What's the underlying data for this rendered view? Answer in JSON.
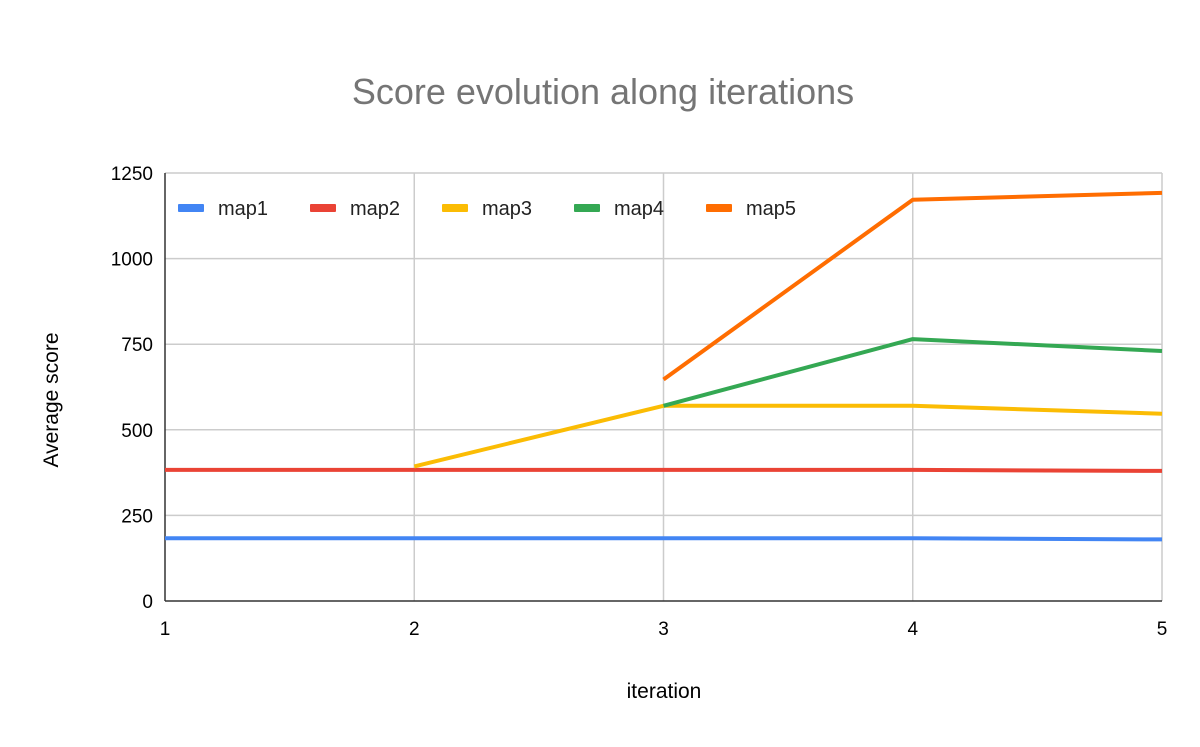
{
  "chart_data": {
    "type": "line",
    "title": "Score evolution along iterations",
    "xlabel": "iteration",
    "ylabel": "Average score",
    "x": [
      1,
      2,
      3,
      4,
      5
    ],
    "xlim": [
      1,
      5
    ],
    "ylim": [
      0,
      1250
    ],
    "yticks": [
      0,
      250,
      500,
      750,
      1000,
      1250
    ],
    "xticks": [
      1,
      2,
      3,
      4,
      5
    ],
    "grid": true,
    "legend_position": "top-left",
    "series": [
      {
        "name": "map1",
        "color": "#4285F4",
        "values": [
          183,
          183,
          183,
          183,
          180
        ]
      },
      {
        "name": "map2",
        "color": "#EA4335",
        "values": [
          383,
          383,
          383,
          383,
          380
        ]
      },
      {
        "name": "map3",
        "color": "#FBBC04",
        "values": [
          null,
          393,
          570,
          570,
          547
        ]
      },
      {
        "name": "map4",
        "color": "#34A853",
        "values": [
          null,
          null,
          570,
          765,
          730
        ]
      },
      {
        "name": "map5",
        "color": "#FF6D01",
        "values": [
          null,
          null,
          647,
          1172,
          1192
        ]
      }
    ]
  }
}
